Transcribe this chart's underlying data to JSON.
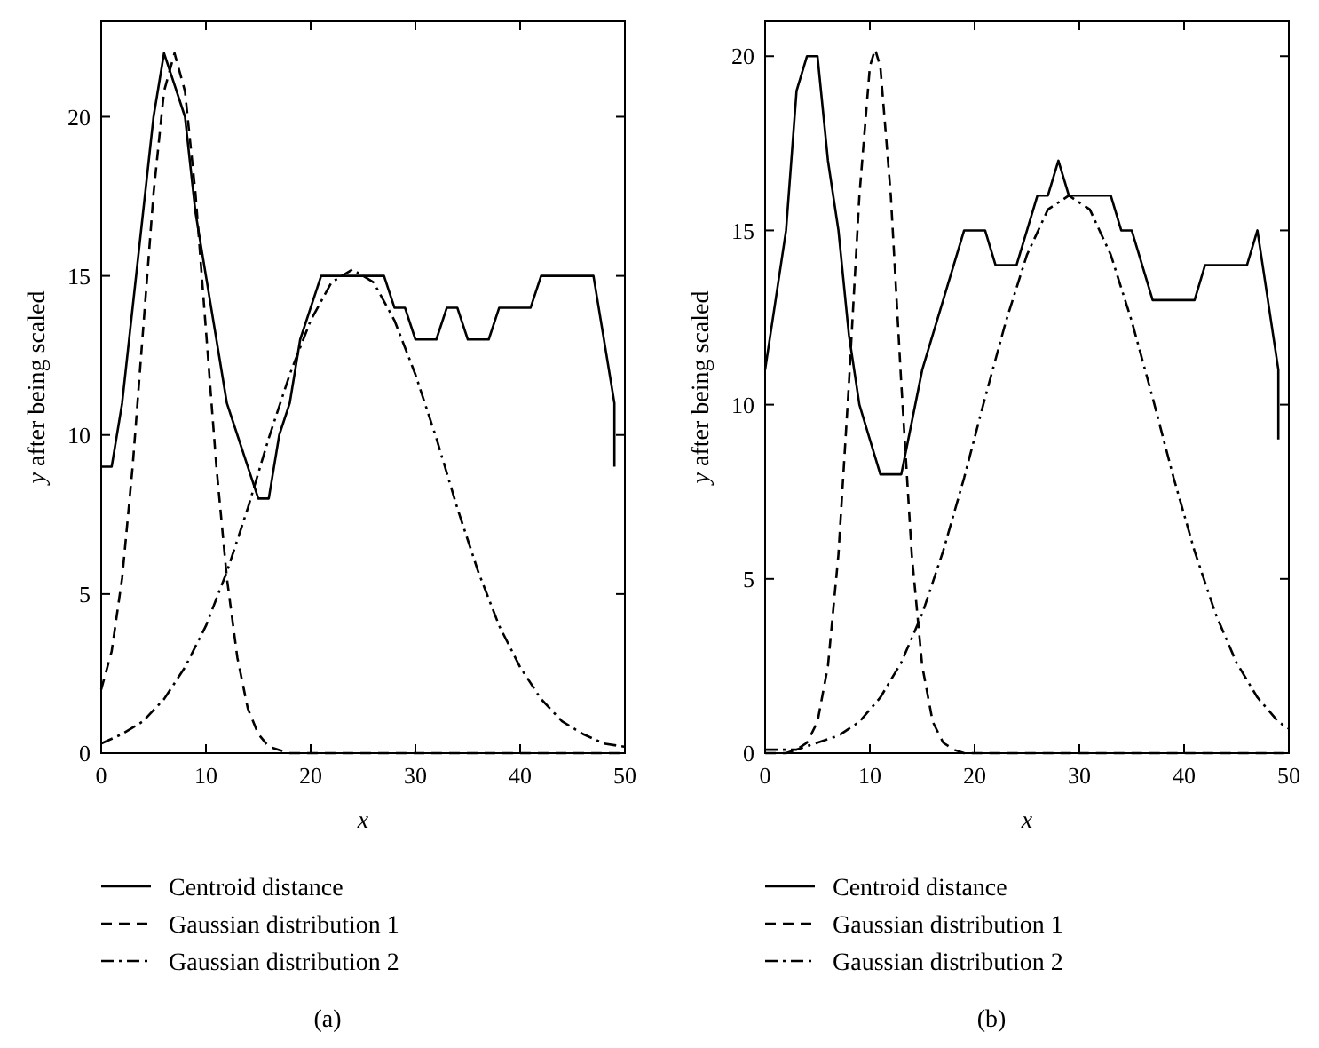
{
  "chart_data": [
    {
      "type": "line",
      "xlabel": "x",
      "ylabel": "y after being scaled",
      "xlim": [
        0,
        50
      ],
      "ylim": [
        0,
        23
      ],
      "xticks": [
        0,
        10,
        20,
        30,
        40,
        50
      ],
      "yticks": [
        0,
        5,
        10,
        15,
        20
      ],
      "legend": "bottom",
      "grid": false,
      "annotations": [
        "(a)"
      ],
      "series": [
        {
          "name": "Centroid distance",
          "color": "#000000",
          "line_style": "solid",
          "x": [
            0,
            1,
            2,
            3,
            4,
            5,
            6,
            7,
            8,
            9,
            10,
            11,
            12,
            13,
            14,
            15,
            16,
            17,
            18,
            19,
            20,
            21,
            27,
            28,
            29,
            30,
            32,
            33,
            34,
            35,
            37,
            38,
            41,
            42,
            47,
            48,
            49,
            49
          ],
          "values": [
            9,
            9,
            11,
            14,
            17,
            20,
            22,
            21,
            20,
            17,
            15,
            13,
            11,
            10,
            9,
            8,
            8,
            10,
            11,
            13,
            14,
            15,
            15,
            14,
            14,
            13,
            13,
            14,
            14,
            13,
            13,
            14,
            14,
            15,
            15,
            13,
            11,
            9
          ]
        },
        {
          "name": "Gaussian distribution 1",
          "color": "#000000",
          "line_style": "dashed",
          "x": [
            0,
            1,
            2,
            3,
            4,
            5,
            6,
            7,
            8,
            9,
            10,
            11,
            12,
            13,
            14,
            15,
            16,
            17,
            18,
            20,
            30,
            40,
            50
          ],
          "values": [
            2.0,
            3.2,
            5.5,
            9.0,
            13.3,
            17.6,
            20.8,
            22,
            20.8,
            17.6,
            13.3,
            9.0,
            5.5,
            3.0,
            1.4,
            0.6,
            0.2,
            0.1,
            0,
            0,
            0,
            0,
            0
          ]
        },
        {
          "name": "Gaussian distribution 2",
          "color": "#000000",
          "line_style": "dashdot",
          "x": [
            0,
            2,
            4,
            6,
            8,
            10,
            12,
            14,
            16,
            18,
            20,
            22,
            24,
            26,
            28,
            30,
            32,
            34,
            36,
            38,
            40,
            42,
            44,
            46,
            48,
            50
          ],
          "values": [
            0.3,
            0.6,
            1.0,
            1.7,
            2.7,
            4.0,
            5.7,
            7.7,
            9.9,
            11.9,
            13.6,
            14.8,
            15.2,
            14.8,
            13.6,
            11.9,
            9.9,
            7.7,
            5.7,
            4.0,
            2.7,
            1.7,
            1.0,
            0.6,
            0.3,
            0.2
          ]
        }
      ]
    },
    {
      "type": "line",
      "xlabel": "x",
      "ylabel": "y after being scaled",
      "xlim": [
        0,
        50
      ],
      "ylim": [
        0,
        21
      ],
      "xticks": [
        0,
        10,
        20,
        30,
        40,
        50
      ],
      "yticks": [
        0,
        5,
        10,
        15,
        20
      ],
      "legend": "bottom",
      "grid": false,
      "annotations": [
        "(b)"
      ],
      "series": [
        {
          "name": "Centroid distance",
          "color": "#000000",
          "line_style": "solid",
          "x": [
            0,
            1,
            2,
            3,
            4,
            5,
            6,
            7,
            8,
            9,
            10,
            11,
            13,
            15,
            16,
            17,
            18,
            19,
            21,
            22,
            24,
            26,
            27,
            28,
            29,
            33,
            34,
            35,
            37,
            41,
            42,
            46,
            47,
            49,
            49
          ],
          "values": [
            11,
            13,
            15,
            19,
            20,
            20,
            17,
            15,
            12,
            10,
            9,
            8,
            8,
            11,
            12,
            13,
            14,
            15,
            15,
            14,
            14,
            16,
            16,
            17,
            16,
            16,
            15,
            15,
            13,
            13,
            14,
            14,
            15,
            11,
            9
          ]
        },
        {
          "name": "Gaussian distribution 1",
          "color": "#000000",
          "line_style": "dashed",
          "x": [
            0,
            1,
            2,
            3,
            4,
            5,
            6,
            7,
            8,
            9,
            10,
            10.5,
            11,
            12,
            13,
            14,
            15,
            16,
            17,
            18,
            19,
            20,
            30,
            40,
            50
          ],
          "values": [
            0,
            0,
            0,
            0.1,
            0.3,
            0.9,
            2.5,
            5.7,
            10.6,
            16.0,
            19.7,
            20.2,
            19.7,
            16.0,
            10.6,
            5.7,
            2.5,
            0.9,
            0.3,
            0.1,
            0,
            0,
            0,
            0,
            0
          ]
        },
        {
          "name": "Gaussian distribution 2",
          "color": "#000000",
          "line_style": "dashdot",
          "x": [
            0,
            1,
            3,
            5,
            7,
            9,
            11,
            13,
            15,
            17,
            19,
            21,
            23,
            25,
            27,
            29,
            31,
            33,
            35,
            37,
            39,
            41,
            43,
            45,
            47,
            49,
            50
          ],
          "values": [
            0.1,
            0.1,
            0.1,
            0.3,
            0.5,
            0.9,
            1.6,
            2.6,
            4.0,
            5.8,
            7.9,
            10.2,
            12.4,
            14.3,
            15.6,
            16,
            15.6,
            14.3,
            12.4,
            10.2,
            7.9,
            5.8,
            4.0,
            2.6,
            1.6,
            0.9,
            0.7
          ]
        }
      ]
    }
  ]
}
